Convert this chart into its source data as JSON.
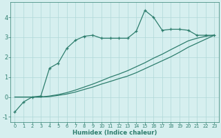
{
  "xlabel": "Humidex (Indice chaleur)",
  "x": [
    0,
    1,
    2,
    3,
    4,
    5,
    6,
    7,
    8,
    9,
    10,
    11,
    12,
    13,
    14,
    15,
    16,
    17,
    18,
    19,
    20,
    21,
    22,
    23
  ],
  "line_max": [
    -0.75,
    -0.25,
    0.0,
    0.05,
    1.45,
    1.7,
    2.45,
    2.85,
    3.05,
    3.1,
    2.95,
    2.95,
    2.95,
    2.95,
    3.3,
    4.35,
    4.0,
    3.35,
    3.4,
    3.4,
    3.35,
    3.1,
    3.1,
    3.1
  ],
  "line_mean": [
    0.0,
    0.0,
    0.0,
    0.0,
    0.05,
    0.12,
    0.22,
    0.35,
    0.5,
    0.65,
    0.82,
    1.0,
    1.15,
    1.32,
    1.52,
    1.72,
    1.95,
    2.15,
    2.38,
    2.6,
    2.82,
    2.95,
    3.05,
    3.1
  ],
  "line_min": [
    0.0,
    0.0,
    0.0,
    0.0,
    0.02,
    0.08,
    0.15,
    0.25,
    0.38,
    0.5,
    0.65,
    0.78,
    0.92,
    1.05,
    1.22,
    1.42,
    1.62,
    1.82,
    2.02,
    2.25,
    2.5,
    2.7,
    2.9,
    3.1
  ],
  "line_color": "#2d7d6d",
  "bg_color": "#d6efef",
  "grid_color": "#afd8d8",
  "ylim": [
    -1.25,
    4.75
  ],
  "xlim": [
    -0.5,
    23.5
  ],
  "yticks": [
    -1,
    0,
    1,
    2,
    3,
    4
  ],
  "xticks": [
    0,
    1,
    2,
    3,
    4,
    5,
    6,
    7,
    8,
    9,
    10,
    11,
    12,
    13,
    14,
    15,
    16,
    17,
    18,
    19,
    20,
    21,
    22,
    23
  ]
}
